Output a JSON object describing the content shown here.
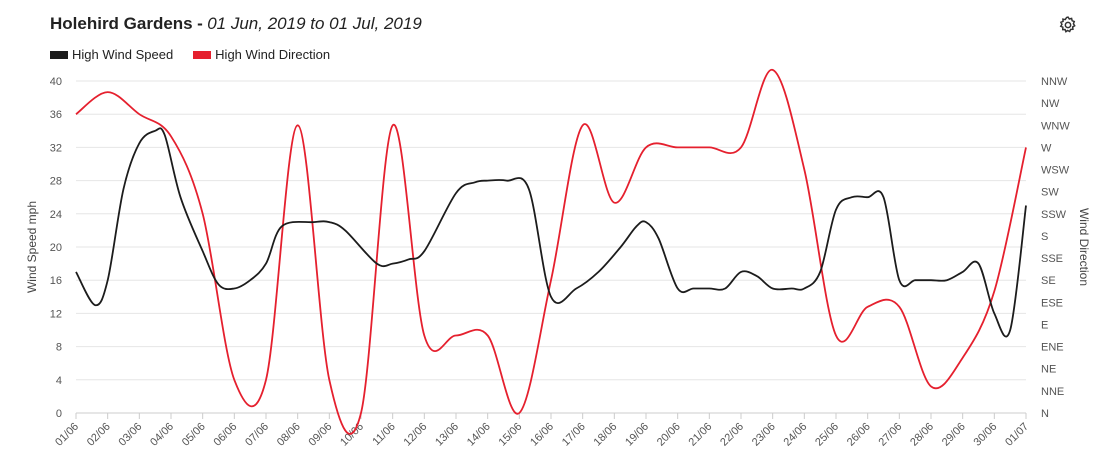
{
  "header": {
    "title": "Holehird Gardens",
    "separator": "-",
    "range": "01 Jun, 2019 to 01 Jul, 2019"
  },
  "icons": {
    "settings": "gear-icon"
  },
  "colors": {
    "speed": "#1c1c1c",
    "direction": "#e5202e",
    "grid": "#e6e6e6"
  },
  "chart_data": {
    "type": "line",
    "categories": [
      "01/06",
      "02/06",
      "03/06",
      "04/06",
      "05/06",
      "06/06",
      "07/06",
      "08/06",
      "09/06",
      "10/06",
      "11/06",
      "12/06",
      "13/06",
      "14/06",
      "15/06",
      "16/06",
      "17/06",
      "18/06",
      "19/06",
      "20/06",
      "21/06",
      "22/06",
      "23/06",
      "24/06",
      "25/06",
      "26/06",
      "27/06",
      "28/06",
      "29/06",
      "30/06",
      "01/07"
    ],
    "series": [
      {
        "name": "High Wind Speed",
        "axis": "left",
        "color": "#1c1c1c",
        "x": [
          0,
          0.6,
          1.0,
          1.5,
          2.0,
          2.5,
          2.8,
          3.3,
          4.0,
          4.5,
          5.0,
          5.5,
          6.0,
          6.5,
          7.5,
          8.0,
          8.5,
          9.5,
          10.0,
          10.5,
          11.0,
          12.0,
          12.6,
          13.0,
          13.6,
          14.3,
          15.0,
          15.8,
          16.5,
          17.2,
          17.7,
          18.0,
          18.4,
          19.0,
          19.5,
          20.0,
          20.5,
          21.0,
          21.5,
          22.0,
          22.6,
          23.0,
          23.5,
          24.0,
          24.5,
          25.0,
          25.5,
          26.0,
          26.5,
          27.0,
          27.5,
          28.0,
          28.5,
          29.0,
          29.5,
          30.0
        ],
        "y": [
          17,
          13,
          16,
          27,
          32.5,
          34,
          33.5,
          26,
          19.5,
          15.5,
          15,
          16,
          18,
          22.5,
          23,
          23,
          22,
          18,
          18,
          18.5,
          19.5,
          26.5,
          27.8,
          28,
          28,
          27,
          14,
          15,
          17,
          20,
          22.5,
          23,
          21,
          15,
          15,
          15,
          15,
          17,
          16.5,
          15,
          15,
          15,
          17,
          24.5,
          26,
          26,
          26,
          16,
          16,
          16,
          16,
          17,
          18,
          12,
          10,
          25
        ]
      },
      {
        "name": "High Wind Direction",
        "axis": "right",
        "color": "#e5202e",
        "direction_index": [
          13.5,
          14.5,
          13.5,
          12.5,
          9,
          1.5,
          1.5,
          13,
          1.5,
          0,
          13,
          3.5,
          3.5,
          3.5,
          0,
          6,
          13,
          9.5,
          12,
          12,
          12,
          12,
          15.5,
          11,
          3.5,
          4.8,
          4.8,
          1.2,
          2.5,
          5.5,
          12
        ]
      }
    ],
    "y_left": {
      "title": "Wind Speed mph",
      "min": 0,
      "max": 40,
      "ticks": [
        0,
        4,
        8,
        12,
        16,
        20,
        24,
        28,
        32,
        36,
        40
      ]
    },
    "y_right": {
      "title": "Wind Direction",
      "labels": [
        "N",
        "NNE",
        "NE",
        "ENE",
        "E",
        "ESE",
        "SE",
        "SSE",
        "S",
        "SSW",
        "SW",
        "WSW",
        "W",
        "WNW",
        "NW",
        "NNW"
      ]
    },
    "grid": true,
    "legend_position": "top-left"
  }
}
